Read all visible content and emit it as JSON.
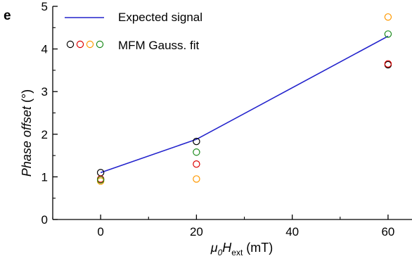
{
  "panel_label": "e",
  "chart_data": {
    "type": "scatter",
    "xlabel_parts": {
      "mu": "μ",
      "mu_sub": "0",
      "h": "H",
      "h_sub": "ext",
      "unit": " (mT)"
    },
    "ylabel": "Phase offset",
    "ylabel_unit": " (°)",
    "xlim": [
      -10,
      65
    ],
    "ylim": [
      0,
      5
    ],
    "x_ticks": [
      0,
      20,
      40,
      60
    ],
    "y_ticks": [
      0,
      1,
      2,
      3,
      4,
      5
    ],
    "grid": false,
    "legend_position": "top-left",
    "legend": {
      "line_label": "Expected signal",
      "points_label": "MFM Gauss. fit"
    },
    "line": {
      "name": "Expected signal",
      "color": "#2222cc",
      "x": [
        0,
        20,
        60
      ],
      "y": [
        1.1,
        1.88,
        4.3
      ]
    },
    "point_series": [
      {
        "color": "#000000",
        "x": [
          0,
          20,
          60
        ],
        "y": [
          1.1,
          1.83,
          3.63
        ]
      },
      {
        "color": "#dd0000",
        "x": [
          0,
          20,
          60
        ],
        "y": [
          0.95,
          1.3,
          3.65
        ]
      },
      {
        "color": "#ff9900",
        "x": [
          0,
          20,
          60
        ],
        "y": [
          0.9,
          0.95,
          4.75
        ]
      },
      {
        "color": "#1a8a1a",
        "x": [
          0,
          20,
          60
        ],
        "y": [
          0.93,
          1.58,
          4.35
        ]
      }
    ]
  }
}
